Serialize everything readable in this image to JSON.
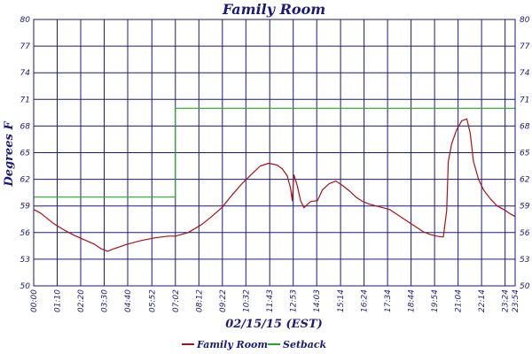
{
  "chart_data": {
    "type": "line",
    "title": "Family Room",
    "xlabel": "02/15/15 (EST)",
    "ylabel": "Degrees F",
    "ylim": [
      50,
      80
    ],
    "xlim": [
      "00:00",
      "23:54"
    ],
    "y_ticks": [
      "80",
      "77",
      "74",
      "71",
      "68",
      "65",
      "62",
      "59",
      "56",
      "53",
      "50"
    ],
    "x_ticks": [
      "00:00",
      "01:10",
      "02:20",
      "03:30",
      "04:40",
      "05:52",
      "07:02",
      "08:12",
      "09:22",
      "10:32",
      "11:43",
      "12:53",
      "14:03",
      "15:14",
      "16:24",
      "17:34",
      "18:44",
      "19:54",
      "21:04",
      "22:14",
      "23:24",
      "23:54"
    ],
    "grid": true,
    "legend_position": "bottom",
    "colors": {
      "axis": "#1a1a7a",
      "grid": "#1a1a7a",
      "family_room": "#aa1111",
      "setback": "#22aa22"
    },
    "series": [
      {
        "name": "Family Room",
        "x": [
          "00:00",
          "00:20",
          "00:40",
          "01:00",
          "01:30",
          "02:00",
          "02:30",
          "03:00",
          "03:20",
          "03:40",
          "04:00",
          "04:40",
          "05:20",
          "06:00",
          "06:40",
          "07:02",
          "07:40",
          "08:20",
          "08:50",
          "09:20",
          "09:50",
          "10:20",
          "10:50",
          "11:15",
          "11:40",
          "12:05",
          "12:20",
          "12:35",
          "12:45",
          "12:50",
          "12:55",
          "13:05",
          "13:15",
          "13:25",
          "13:45",
          "14:05",
          "14:20",
          "14:40",
          "15:00",
          "15:20",
          "15:40",
          "16:00",
          "16:20",
          "16:40",
          "17:00",
          "17:20",
          "17:40",
          "18:00",
          "18:20",
          "18:40",
          "19:00",
          "19:20",
          "19:40",
          "20:00",
          "20:20",
          "20:30",
          "20:35",
          "20:45",
          "21:00",
          "21:15",
          "21:30",
          "21:40",
          "21:50",
          "22:05",
          "22:20",
          "22:40",
          "23:00",
          "23:20",
          "23:40",
          "23:54"
        ],
        "values": [
          58.6,
          58.2,
          57.6,
          57.0,
          56.3,
          55.7,
          55.2,
          54.7,
          54.2,
          53.9,
          54.2,
          54.7,
          55.1,
          55.4,
          55.6,
          55.6,
          56.0,
          56.9,
          57.8,
          58.8,
          60.2,
          61.5,
          62.6,
          63.5,
          63.8,
          63.6,
          63.2,
          62.4,
          61.0,
          59.6,
          62.5,
          61.3,
          59.6,
          58.8,
          59.5,
          59.6,
          60.8,
          61.5,
          61.8,
          61.3,
          60.7,
          60.0,
          59.5,
          59.2,
          59.0,
          58.8,
          58.6,
          58.1,
          57.6,
          57.1,
          56.6,
          56.1,
          55.8,
          55.6,
          55.5,
          58.5,
          64.0,
          66.0,
          67.6,
          68.6,
          68.8,
          67.2,
          64.0,
          62.0,
          60.8,
          59.8,
          59.0,
          58.6,
          58.1,
          57.8
        ]
      },
      {
        "name": "Setback",
        "x": [
          "00:00",
          "07:02",
          "07:02",
          "23:54"
        ],
        "values": [
          60,
          60,
          70,
          70
        ]
      }
    ]
  }
}
